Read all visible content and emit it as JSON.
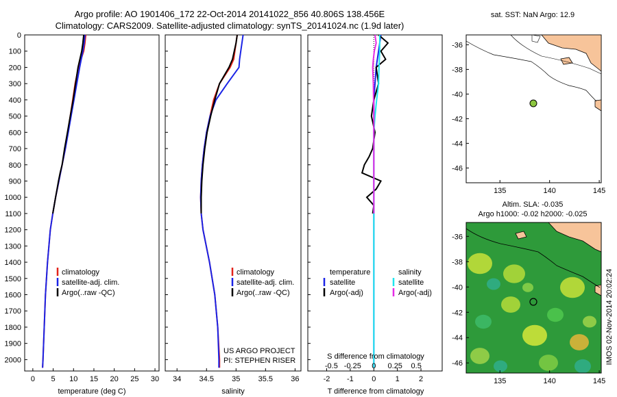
{
  "header": {
    "line1": "Argo profile: AO 1901406_172 22-Oct-2014 20141022_856 40.806S 138.456E",
    "line2": "Climatology: CARS2009. Satellite-adjusted climatology: synTS_20141024.nc (1.9d later)"
  },
  "colors": {
    "climatology": "#e2231a",
    "satellite": "#1a23e6",
    "argo": "#000000",
    "sal_sat": "#1ee5ee",
    "sal_argo": "#e52be5",
    "land": "#f7c49a"
  },
  "depth_axis": {
    "ticks": [
      0,
      100,
      200,
      300,
      400,
      500,
      600,
      700,
      800,
      900,
      1000,
      1100,
      1200,
      1300,
      1400,
      1500,
      1600,
      1700,
      1800,
      1900,
      2000
    ],
    "range": [
      0,
      2070
    ]
  },
  "temp_panel": {
    "xlabel": "temperature (deg C)",
    "xticks": [
      "0",
      "5",
      "10",
      "15",
      "20",
      "25",
      "30"
    ],
    "legend": [
      "climatology",
      "satellite-adj. clim.",
      "Argo(..raw -QC)"
    ]
  },
  "sal_panel": {
    "xlabel": "salinity",
    "xticks": [
      "34",
      "34.5",
      "35",
      "35.5",
      "36"
    ],
    "legend": [
      "climatology",
      "satellite-adj. clim.",
      "Argo(..raw -QC)"
    ],
    "credit1": "US ARGO PROJECT",
    "credit2": "PI: STEPHEN RISER"
  },
  "diff_panel": {
    "xlabel": "T difference from climatology",
    "toplabel": "S difference from climatology",
    "bottom_ticks": [
      "-2",
      "-1",
      "0",
      "1",
      "2"
    ],
    "top_ticks": [
      "-0.5",
      "-0.25",
      "0",
      "0.25",
      "0.5"
    ],
    "legend_temp_title": "temperature",
    "legend_sal_title": "salinity",
    "legend_temp": [
      "satellite",
      "Argo(-adj)"
    ],
    "legend_sal": [
      "satellite",
      "Argo(-adj)"
    ]
  },
  "map1": {
    "title": "sat. SST: NaN Argo: 12.9",
    "yticks": [
      "-36",
      "-38",
      "-40",
      "-42",
      "-44",
      "-46"
    ],
    "xticks": [
      "135",
      "140",
      "145"
    ]
  },
  "map2": {
    "title1": "Altim. SLA: -0.035",
    "title2": "Argo h1000: -0.02 h2000: -0.025",
    "yticks": [
      "-36",
      "-38",
      "-40",
      "-42",
      "-44",
      "-46"
    ],
    "xticks": [
      "135",
      "140",
      "145"
    ],
    "side_label": "IMOS 02-Nov-2014 20:02:24"
  },
  "chart_data": [
    {
      "type": "line",
      "title": "",
      "xlabel": "temperature (deg C)",
      "ylabel": "",
      "xlim": [
        -2,
        31
      ],
      "ylim": [
        2070,
        0
      ],
      "series": [
        {
          "name": "climatology",
          "depth": [
            0,
            50,
            100,
            200,
            300,
            400,
            500,
            600,
            700,
            800,
            900,
            1000,
            1100,
            1200,
            1400,
            1600,
            1800,
            2000,
            2050
          ],
          "values": [
            13,
            12.8,
            12.5,
            11.2,
            10.4,
            9.8,
            9.2,
            8.6,
            8.0,
            7.2,
            6.4,
            5.6,
            4.9,
            4.3,
            3.6,
            3.1,
            2.8,
            2.5,
            2.4
          ]
        },
        {
          "name": "satellite-adj. clim.",
          "depth": [
            0,
            50,
            100,
            200,
            300,
            400,
            500,
            600,
            700,
            800,
            900,
            1000,
            1100,
            1200,
            1400,
            1600,
            1800,
            2000,
            2050
          ],
          "values": [
            12.8,
            12.6,
            12.3,
            11.5,
            10.8,
            10.1,
            9.4,
            8.7,
            8.0,
            7.2,
            6.4,
            5.6,
            4.9,
            4.3,
            3.6,
            3.1,
            2.8,
            2.5,
            2.4
          ]
        },
        {
          "name": "Argo(..raw -QC)",
          "depth": [
            0,
            50,
            100,
            200,
            300,
            400,
            500,
            600,
            700,
            800,
            850,
            900,
            1000,
            1100
          ],
          "values": [
            12.5,
            12.3,
            12.0,
            11.1,
            10.5,
            9.9,
            9.2,
            8.5,
            7.8,
            7.2,
            6.7,
            6.3,
            5.6,
            4.9
          ]
        }
      ]
    },
    {
      "type": "line",
      "title": "",
      "xlabel": "salinity",
      "ylabel": "",
      "xlim": [
        33.8,
        36.1
      ],
      "ylim": [
        2070,
        0
      ],
      "series": [
        {
          "name": "climatology",
          "depth": [
            0,
            50,
            100,
            150,
            200,
            300,
            400,
            500,
            600,
            700,
            800,
            900,
            1000,
            1100,
            1200,
            1400,
            1600,
            1800,
            2000,
            2050
          ],
          "values": [
            35.02,
            35.0,
            34.98,
            34.96,
            34.9,
            34.72,
            34.62,
            34.56,
            34.5,
            34.46,
            34.43,
            34.41,
            34.4,
            34.41,
            34.44,
            34.55,
            34.64,
            34.69,
            34.72,
            34.72
          ]
        },
        {
          "name": "satellite-adj. clim.",
          "depth": [
            0,
            50,
            100,
            150,
            200,
            300,
            400,
            500,
            600,
            700,
            800,
            900,
            1000,
            1100,
            1200,
            1400,
            1600,
            1800,
            2000,
            2050
          ],
          "values": [
            35.12,
            35.1,
            35.08,
            35.06,
            35.05,
            34.85,
            34.66,
            34.56,
            34.5,
            34.46,
            34.43,
            34.41,
            34.4,
            34.41,
            34.44,
            34.55,
            34.64,
            34.69,
            34.71,
            34.71
          ]
        },
        {
          "name": "Argo(..raw -QC)",
          "depth": [
            0,
            50,
            100,
            150,
            200,
            300,
            400,
            500,
            600,
            700,
            800,
            900,
            1000,
            1100
          ],
          "values": [
            35.02,
            35.0,
            34.97,
            34.94,
            34.88,
            34.72,
            34.64,
            34.57,
            34.51,
            34.47,
            34.44,
            34.42,
            34.41,
            34.41
          ]
        }
      ]
    },
    {
      "type": "line",
      "title": "",
      "xlabel": "T difference from climatology",
      "ylabel": "",
      "xlim": [
        -2.8,
        2.9
      ],
      "ylim": [
        2070,
        0
      ],
      "series": [
        {
          "name": "satellite",
          "depth": [
            0,
            100,
            200,
            300,
            400,
            500,
            1100,
            2050
          ],
          "values": [
            0.3,
            0.2,
            0.1,
            0.05,
            0.0,
            0.0,
            0.0,
            0.0
          ]
        },
        {
          "name": "Argo(-adj)",
          "depth": [
            0,
            50,
            100,
            150,
            200,
            300,
            400,
            500,
            600,
            700,
            750,
            800,
            850,
            900,
            950,
            1000,
            1050,
            1100
          ],
          "values": [
            0.2,
            0.6,
            0.3,
            0.5,
            0.1,
            0.2,
            0.0,
            -0.1,
            0.05,
            -0.05,
            -0.2,
            -0.4,
            -0.5,
            0.3,
            0.1,
            -0.3,
            0.0,
            -0.05
          ]
        },
        {
          "name": "satellite",
          "depth": [
            0,
            100,
            200,
            300,
            400,
            500,
            600,
            700,
            800,
            900,
            1000,
            1100,
            2050
          ],
          "values": [
            0.25,
            0.25,
            0.22,
            0.2,
            0.12,
            0.05,
            0.0,
            0.0,
            0.0,
            0.0,
            0.0,
            0.0,
            0.0
          ]
        },
        {
          "name": "Argo(-adj)",
          "depth": [
            0,
            50,
            100,
            150,
            200,
            300,
            400,
            500,
            600,
            700,
            800,
            900,
            1000,
            1100
          ],
          "values": [
            0.05,
            0.1,
            0.02,
            -0.02,
            -0.05,
            -0.02,
            -0.01,
            0.0,
            0.0,
            0.0,
            0.0,
            0.0,
            0.0,
            0.0
          ]
        }
      ]
    }
  ]
}
